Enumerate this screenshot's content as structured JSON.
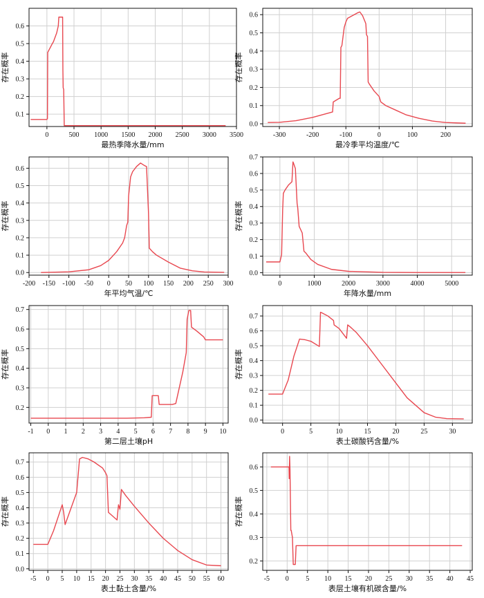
{
  "colors": {
    "curve": "#e8474f",
    "frame": "#111111",
    "grid": "#d0d0d0"
  },
  "chart_data": [
    {
      "type": "line",
      "xlabel": "最热季降水量/mm",
      "ylabel": "存在概率",
      "xlim": [
        -330,
        3500
      ],
      "ylim": [
        0.03,
        0.7
      ],
      "xticks": [
        0,
        500,
        1000,
        1500,
        2000,
        2500,
        3000,
        3500
      ],
      "yticks": [
        0.1,
        0.2,
        0.3,
        0.4,
        0.5,
        0.6
      ],
      "grid": true,
      "series": [
        {
          "x": [
            -300,
            0,
            10,
            15,
            100,
            120,
            180,
            210,
            220,
            240,
            290,
            295,
            300,
            310,
            320,
            3300
          ],
          "y": [
            0.07,
            0.07,
            0.075,
            0.45,
            0.5,
            0.51,
            0.56,
            0.6,
            0.65,
            0.65,
            0.65,
            0.35,
            0.25,
            0.24,
            0.035,
            0.035
          ]
        }
      ]
    },
    {
      "type": "line",
      "xlabel": "最冷季平均温度/℃",
      "ylabel": "存在概率",
      "xlim": [
        -350,
        280
      ],
      "ylim": [
        -0.015,
        0.635
      ],
      "xticks": [
        -300,
        -200,
        -100,
        0,
        100,
        200
      ],
      "yticks": [
        0.0,
        0.1,
        0.2,
        0.3,
        0.4,
        0.5,
        0.6
      ],
      "grid": true,
      "series": [
        {
          "x": [
            -335,
            -300,
            -250,
            -200,
            -160,
            -140,
            -138,
            -120,
            -117,
            -115,
            -112,
            -105,
            -100,
            -95,
            -85,
            -75,
            -65,
            -58,
            -50,
            -42,
            -40,
            -38,
            -35,
            -33,
            -30,
            -15,
            0,
            5,
            20,
            50,
            80,
            120,
            160,
            200,
            260
          ],
          "y": [
            0.007,
            0.008,
            0.017,
            0.035,
            0.055,
            0.065,
            0.12,
            0.14,
            0.14,
            0.42,
            0.43,
            0.53,
            0.56,
            0.58,
            0.59,
            0.6,
            0.61,
            0.615,
            0.595,
            0.56,
            0.55,
            0.49,
            0.48,
            0.23,
            0.22,
            0.18,
            0.15,
            0.12,
            0.1,
            0.075,
            0.05,
            0.03,
            0.015,
            0.007,
            0.003
          ]
        }
      ]
    },
    {
      "type": "line",
      "xlabel": "年平均气温/℃",
      "ylabel": "存在概率",
      "xlim": [
        -200,
        300
      ],
      "ylim": [
        -0.015,
        0.665
      ],
      "xticks": [
        -200,
        -150,
        -100,
        -50,
        0,
        50,
        100,
        150,
        200,
        250,
        300
      ],
      "yticks": [
        0.0,
        0.1,
        0.2,
        0.3,
        0.4,
        0.5,
        0.6
      ],
      "grid": true,
      "series": [
        {
          "x": [
            -170,
            -100,
            -50,
            -20,
            0,
            20,
            35,
            40,
            45,
            48,
            50,
            55,
            60,
            70,
            80,
            90,
            95,
            100,
            102,
            110,
            120,
            150,
            180,
            210,
            240,
            290
          ],
          "y": [
            0.0,
            0.004,
            0.016,
            0.04,
            0.07,
            0.12,
            0.17,
            0.2,
            0.27,
            0.29,
            0.44,
            0.55,
            0.58,
            0.61,
            0.63,
            0.615,
            0.61,
            0.34,
            0.14,
            0.12,
            0.1,
            0.06,
            0.025,
            0.01,
            0.003,
            0.001
          ]
        }
      ]
    },
    {
      "type": "line",
      "xlabel": "年降水量/mm",
      "ylabel": "存在概率",
      "xlim": [
        -500,
        5600
      ],
      "ylim": [
        -0.015,
        0.7
      ],
      "xticks": [
        0,
        1000,
        2000,
        3000,
        4000,
        5000
      ],
      "yticks": [
        0.0,
        0.1,
        0.2,
        0.3,
        0.4,
        0.5,
        0.6,
        0.7
      ],
      "grid": true,
      "series": [
        {
          "x": [
            -400,
            0,
            50,
            80,
            100,
            150,
            250,
            350,
            380,
            400,
            450,
            500,
            520,
            560,
            650,
            700,
            750,
            900,
            1100,
            1500,
            2000,
            3000,
            4000,
            5400
          ],
          "y": [
            0.065,
            0.065,
            0.11,
            0.38,
            0.48,
            0.5,
            0.53,
            0.55,
            0.67,
            0.66,
            0.63,
            0.42,
            0.39,
            0.28,
            0.24,
            0.13,
            0.12,
            0.08,
            0.05,
            0.02,
            0.008,
            0.002,
            0.001,
            0.001
          ]
        }
      ]
    },
    {
      "type": "line",
      "xlabel": "第二层土壤pH",
      "ylabel": "存在概率",
      "xlim": [
        -1.1,
        10.3
      ],
      "ylim": [
        0.12,
        0.72
      ],
      "xticks": [
        -1,
        0,
        1,
        2,
        3,
        4,
        5,
        6,
        7,
        8,
        9,
        10
      ],
      "yticks": [
        0.2,
        0.3,
        0.4,
        0.5,
        0.6,
        0.7
      ],
      "grid": true,
      "series": [
        {
          "x": [
            -1,
            2.5,
            4.5,
            5.5,
            5.9,
            5.95,
            6.3,
            6.35,
            7.1,
            7.3,
            7.7,
            7.9,
            7.95,
            8.05,
            8.15,
            8.2,
            8.5,
            8.9,
            9,
            9.5,
            10
          ],
          "y": [
            0.145,
            0.145,
            0.145,
            0.147,
            0.15,
            0.26,
            0.26,
            0.215,
            0.215,
            0.22,
            0.38,
            0.48,
            0.65,
            0.695,
            0.695,
            0.61,
            0.59,
            0.56,
            0.545,
            0.545,
            0.545
          ]
        }
      ]
    },
    {
      "type": "line",
      "xlabel": "表土碳酸钙含量/%",
      "ylabel": "存在概率",
      "xlim": [
        -3.5,
        33.5
      ],
      "ylim": [
        -0.02,
        0.77
      ],
      "xticks": [
        0,
        5,
        10,
        15,
        20,
        25,
        30
      ],
      "yticks": [
        0.0,
        0.1,
        0.2,
        0.3,
        0.4,
        0.5,
        0.6,
        0.7
      ],
      "grid": true,
      "series": [
        {
          "x": [
            -2.5,
            0,
            1,
            2,
            3,
            4,
            5,
            6.5,
            6.7,
            7,
            8,
            9,
            9.1,
            10,
            11.3,
            11.5,
            12,
            13,
            15,
            17,
            20,
            22,
            25,
            27,
            29,
            32
          ],
          "y": [
            0.175,
            0.175,
            0.27,
            0.43,
            0.545,
            0.54,
            0.53,
            0.495,
            0.725,
            0.72,
            0.7,
            0.67,
            0.64,
            0.615,
            0.55,
            0.64,
            0.625,
            0.59,
            0.5,
            0.4,
            0.25,
            0.15,
            0.05,
            0.02,
            0.01,
            0.008
          ]
        }
      ]
    },
    {
      "type": "line",
      "xlabel": "表土黏土含量/%",
      "ylabel": "存在概率",
      "xlim": [
        -6.5,
        62.5
      ],
      "ylim": [
        -0.01,
        0.76
      ],
      "xticks": [
        -5,
        0,
        5,
        10,
        15,
        20,
        25,
        30,
        35,
        40,
        45,
        50,
        55,
        60
      ],
      "yticks": [
        0.0,
        0.1,
        0.2,
        0.3,
        0.4,
        0.5,
        0.6,
        0.7
      ],
      "grid": true,
      "series": [
        {
          "x": [
            -5,
            0,
            2,
            5,
            5.5,
            6,
            10,
            11,
            12,
            14,
            16,
            19,
            20,
            20.5,
            21,
            24,
            24.5,
            25,
            25.5,
            27,
            30,
            35,
            40,
            45,
            50,
            55,
            60
          ],
          "y": [
            0.16,
            0.16,
            0.25,
            0.42,
            0.37,
            0.29,
            0.5,
            0.72,
            0.73,
            0.72,
            0.7,
            0.66,
            0.63,
            0.61,
            0.37,
            0.32,
            0.42,
            0.39,
            0.52,
            0.48,
            0.41,
            0.3,
            0.2,
            0.12,
            0.06,
            0.025,
            0.02
          ]
        }
      ]
    },
    {
      "type": "line",
      "xlabel": "表层土壤有机碳含量/%",
      "ylabel": "存在概率",
      "xlim": [
        -6,
        45.5
      ],
      "ylim": [
        0.16,
        0.66
      ],
      "xticks": [
        -5,
        0,
        5,
        10,
        15,
        20,
        25,
        30,
        35,
        40,
        45
      ],
      "yticks": [
        0.2,
        0.3,
        0.4,
        0.5,
        0.6
      ],
      "grid": true,
      "series": [
        {
          "x": [
            -4,
            0,
            0.3,
            0.45,
            0.5,
            0.6,
            0.7,
            0.9,
            1.0,
            1.3,
            1.5,
            1.8,
            2.0,
            2.2,
            3,
            43
          ],
          "y": [
            0.6,
            0.6,
            0.6,
            0.6,
            0.55,
            0.645,
            0.59,
            0.33,
            0.33,
            0.3,
            0.185,
            0.185,
            0.185,
            0.265,
            0.265,
            0.265
          ]
        }
      ]
    }
  ]
}
